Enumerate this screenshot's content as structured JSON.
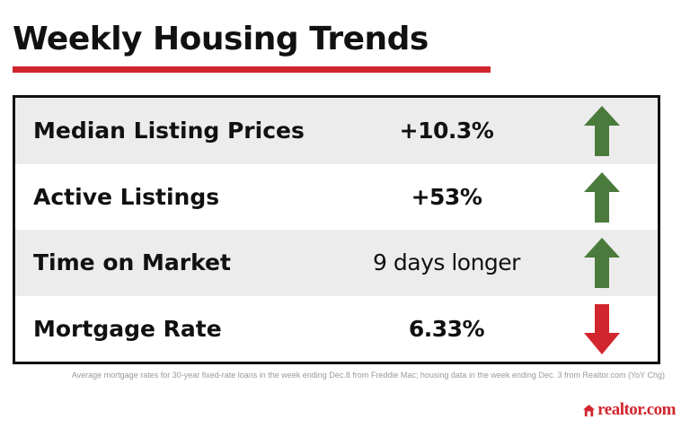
{
  "title": "Weekly Housing Trends",
  "rows": [
    {
      "label": "Median Listing Prices",
      "value": "+10.3%",
      "direction": "up",
      "arrow_icon": "arrow-up-icon"
    },
    {
      "label": "Active Listings",
      "value": "+53%",
      "direction": "up",
      "arrow_icon": "arrow-up-icon"
    },
    {
      "label": "Time on Market",
      "value": "9 days longer",
      "direction": "up",
      "arrow_icon": "arrow-up-icon"
    },
    {
      "label": "Mortgage Rate",
      "value": "6.33%",
      "direction": "down",
      "arrow_icon": "arrow-down-icon"
    }
  ],
  "footnote": "Average mortgage rates for 30-year fixed-rate loans in the week ending Dec.8 from Freddie Mac; housing data in the week ending Dec. 3 from Realtor.com (YoY Chg)",
  "brand": {
    "name": "realtor.com",
    "icon": "house-icon"
  },
  "colors": {
    "accent": "#d2262f",
    "up": "#4a7b3d",
    "down": "#d2262f",
    "row_shade": "#ececec"
  }
}
